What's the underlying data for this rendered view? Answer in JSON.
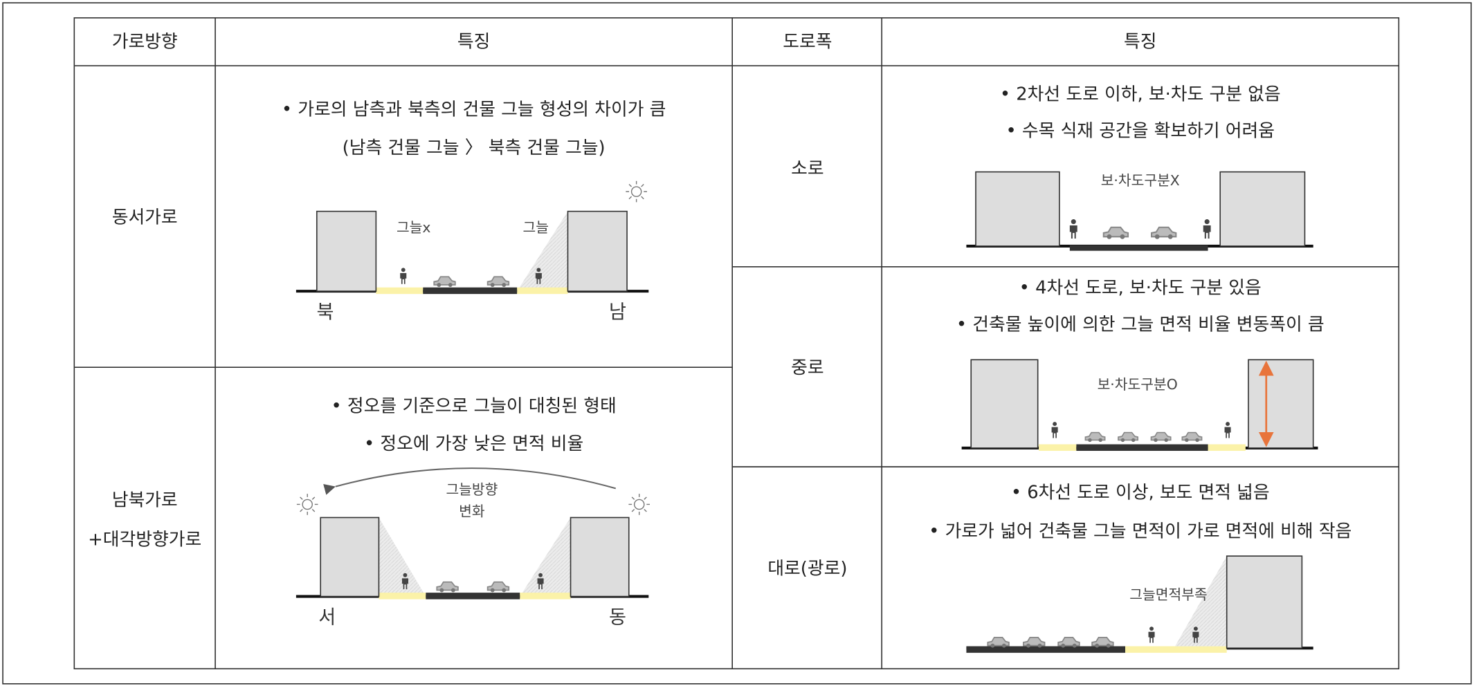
{
  "table": {
    "headers": [
      "가로방향",
      "특징",
      "도로폭",
      "특징"
    ],
    "direction_rows": [
      {
        "name_lines": [
          "동서가로"
        ],
        "features": [
          "• 가로의 남측과 북측의 건물 그늘 형성의 차이가 큼",
          "(남측 건물 그늘 〉 북측 건물 그늘)"
        ],
        "diagram_labels": [
          "그늘x",
          "그늘",
          "북",
          "남"
        ]
      },
      {
        "name_lines": [
          "남북가로",
          "+대각방향가로"
        ],
        "features": [
          "• 정오를 기준으로 그늘이 대칭된 형태",
          "• 정오에 가장 낮은 면적 비율"
        ],
        "diagram_labels": [
          "그늘방향",
          "변화",
          "서",
          "동"
        ]
      }
    ],
    "width_rows": [
      {
        "name": "소로",
        "features": [
          "• 2차선 도로 이하, 보·차도 구분 없음",
          "• 수목 식재 공간을 확보하기 어려움"
        ],
        "diagram_label": "보·차도구분X"
      },
      {
        "name": "중로",
        "features": [
          "• 4차선 도로, 보·차도 구분 있음",
          "• 건축물 높이에 의한 그늘 면적 비율 변동폭이 큼"
        ],
        "diagram_label": "보·차도구분O"
      },
      {
        "name": "대로(광로)",
        "features": [
          "• 6차선 도로 이상, 보도 면적 넓음",
          "• 가로가 넓어 건축물 그늘 면적이 가로 면적에 비해 작음"
        ],
        "diagram_label": "그늘면적부족"
      }
    ]
  }
}
